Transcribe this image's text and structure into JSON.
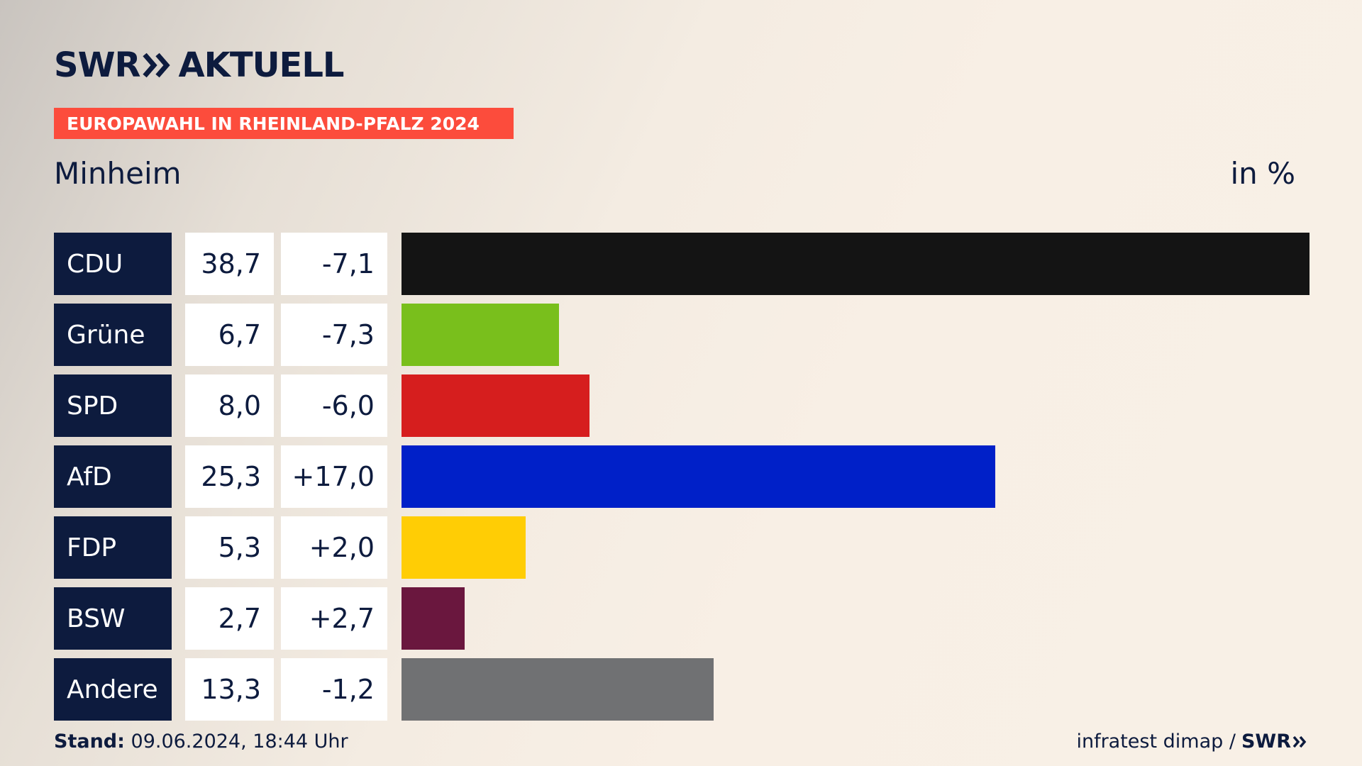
{
  "brand": {
    "logo_left": "SWR",
    "logo_right": "AKTUELL",
    "mini_logo": "SWR"
  },
  "banner": {
    "text": "EUROPAWAHL IN RHEINLAND-PFALZ 2024",
    "color": "#fc4c3c"
  },
  "header": {
    "location": "Minheim",
    "unit": "in %"
  },
  "footer": {
    "stand_label": "Stand:",
    "stand_value": "09.06.2024, 18:44 Uhr",
    "source": "infratest dimap /"
  },
  "chart_data": {
    "type": "bar",
    "orientation": "horizontal",
    "categories": [
      "CDU",
      "Grüne",
      "SPD",
      "AfD",
      "FDP",
      "BSW",
      "Andere"
    ],
    "values": [
      38.7,
      6.7,
      8.0,
      25.3,
      5.3,
      2.7,
      13.3
    ],
    "value_labels": [
      "38,7",
      "6,7",
      "8,0",
      "25,3",
      "5,3",
      "2,7",
      "13,3"
    ],
    "diff_labels": [
      "-7,1",
      "-7,3",
      "-6,0",
      "+17,0",
      "+2,0",
      "+2,7",
      "-1,2"
    ],
    "colors": [
      "#141414",
      "#79bf1c",
      "#d61e1e",
      "#0020c8",
      "#ffcd05",
      "#6a173e",
      "#707173"
    ],
    "xlim": [
      0,
      38.7
    ],
    "grid": false
  }
}
